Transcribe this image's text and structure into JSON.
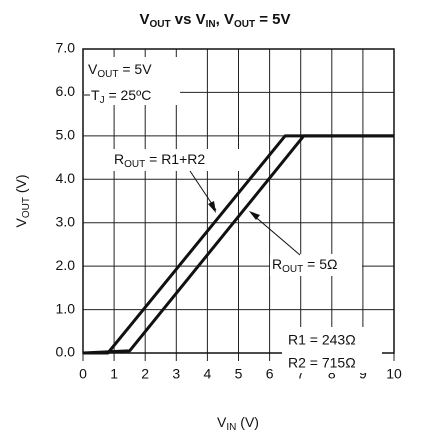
{
  "chart_data": {
    "type": "line",
    "title": [
      "V",
      "OUT",
      " vs V",
      "IN",
      ", V",
      "OUT",
      " = 5V"
    ],
    "x_label": [
      "V",
      "IN",
      " (V)"
    ],
    "y_label": [
      "V",
      "OUT",
      " (V)"
    ],
    "xlim": [
      0,
      10
    ],
    "ylim": [
      0,
      7
    ],
    "xticks": [
      0,
      1,
      2,
      3,
      4,
      5,
      6,
      7,
      8,
      9,
      10
    ],
    "yticks": [
      {
        "value": 0,
        "label": "0.0"
      },
      {
        "value": 1,
        "label": "1.0"
      },
      {
        "value": 2,
        "label": "2.0"
      },
      {
        "value": 3,
        "label": "3.0"
      },
      {
        "value": 4,
        "label": "4.0"
      },
      {
        "value": 5,
        "label": "5.0"
      },
      {
        "value": 6,
        "label": "6.0"
      },
      {
        "value": 7,
        "label": "7.0"
      }
    ],
    "grid": true,
    "series": [
      {
        "color": "#111111",
        "x": [
          0,
          0.8,
          6.5,
          10
        ],
        "values": [
          0,
          0,
          5,
          5
        ]
      },
      {
        "color": "#111111",
        "x": [
          0,
          1.5,
          7.1,
          10
        ],
        "values": [
          0,
          0.05,
          5,
          5
        ]
      }
    ],
    "annotations": [
      [
        "R",
        "OUT",
        " = R1+R2"
      ],
      [
        "R",
        "OUT",
        " = 5Ω"
      ],
      [
        "V",
        "OUT",
        " = 5V"
      ],
      [
        "T",
        "J",
        " = 25ºC"
      ],
      [
        "R1 = 243Ω"
      ],
      [
        "R2 = 715Ω"
      ]
    ]
  }
}
